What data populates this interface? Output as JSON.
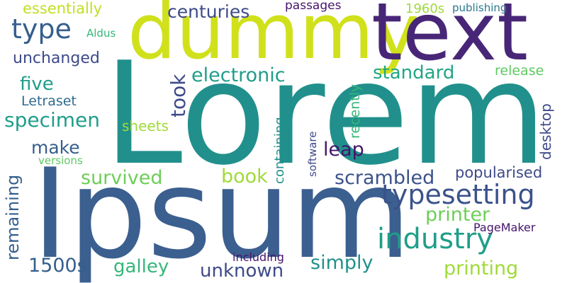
{
  "palette": {
    "dark_purple": "#482677",
    "deep_purple": "#44146b",
    "purple_blue": "#3e4a89",
    "blue": "#355f8d",
    "slate_blue": "#3b528b",
    "teal": "#21908c",
    "teal_blue": "#2a788e",
    "teal_green": "#1f9e89",
    "green": "#35b779",
    "light_green": "#6ece58",
    "yellow_green": "#a0da39",
    "yellow": "#d0e11c",
    "bright_yellow": "#c2df23"
  },
  "words": {
    "lorem": "Lorem",
    "ipsum": "Ipsum",
    "dummy": "dummy",
    "text": "text",
    "type": "type",
    "essentially": "essentially",
    "centuries": "centuries",
    "passages": "passages",
    "s1960": "1960s",
    "publishing": "publishing",
    "aldus": "Aldus",
    "unchanged": "unchanged",
    "five": "five",
    "letraset": "Letraset",
    "specimen": "specimen",
    "took": "took",
    "electronic": "electronic",
    "standard": "standard",
    "release": "release",
    "sheets": "sheets",
    "make": "make",
    "leap": "leap",
    "versions": "versions",
    "survived": "survived",
    "book": "book",
    "scrambled": "scrambled",
    "popularised": "popularised",
    "typesetting": "typesetting",
    "remaining": "remaining",
    "printer": "printer",
    "industry": "industry",
    "pagemaker": "PageMaker",
    "s1500s": "1500s",
    "galley": "galley",
    "unknown": "unknown",
    "including": "including",
    "simply": "simply",
    "printing": "printing",
    "containing": "containing",
    "recently": "recently",
    "software": "software",
    "desktop": "desktop"
  }
}
